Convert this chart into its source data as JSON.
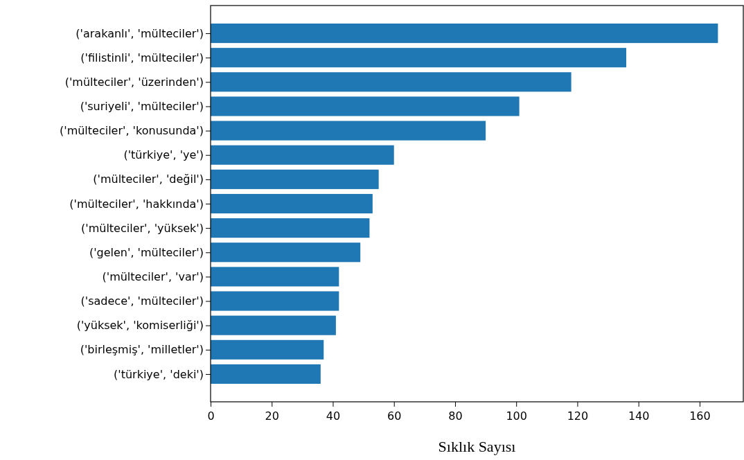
{
  "chart_data": {
    "type": "bar",
    "orientation": "horizontal",
    "xlabel": "Sıklık Sayısı",
    "categories": [
      "('arakanlı', 'mülteciler')",
      "('filistinli', 'mülteciler')",
      "('mülteciler', 'üzerinden')",
      "('suriyeli', 'mülteciler')",
      "('mülteciler', 'konusunda')",
      "('türkiye', 'ye')",
      "('mülteciler', 'değil')",
      "('mülteciler', 'hakkında')",
      "('mülteciler', 'yüksek')",
      "('gelen', 'mülteciler')",
      "('mülteciler', 'var')",
      "('sadece', 'mülteciler')",
      "('yüksek', 'komiserliği')",
      "('birleşmiş', 'milletler')",
      "('türkiye', 'deki')"
    ],
    "values": [
      166,
      136,
      118,
      101,
      90,
      60,
      55,
      53,
      52,
      49,
      42,
      42,
      41,
      37,
      36
    ],
    "color": "#1f77b4",
    "xlim": [
      0,
      174.3
    ],
    "xticks": [
      0,
      20,
      40,
      60,
      80,
      100,
      120,
      140,
      160
    ]
  }
}
